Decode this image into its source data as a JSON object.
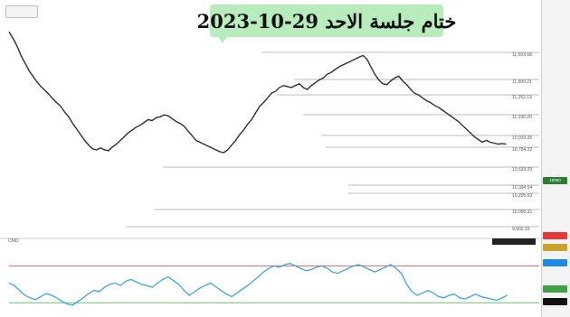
{
  "chart_data": [
    {
      "type": "line",
      "title": "ختام جلسة الاحد 29-10-2023",
      "series": [
        {
          "x": [
            0,
            3,
            6,
            9,
            12,
            15,
            18,
            21,
            24,
            27,
            30,
            33,
            36,
            39,
            42,
            45,
            48,
            51,
            54,
            57,
            60,
            63,
            66,
            69,
            72,
            75,
            78,
            81,
            84,
            87,
            90,
            93,
            96,
            99,
            102,
            105,
            108,
            111,
            114,
            117,
            120,
            123,
            126,
            129,
            132,
            135,
            138,
            141,
            144,
            147,
            150,
            153,
            156,
            159,
            162,
            165,
            168,
            171,
            174,
            177,
            180,
            183,
            186,
            189,
            192,
            195,
            198,
            201,
            204,
            207,
            210,
            213,
            216,
            219,
            222,
            225,
            228,
            231,
            234,
            237,
            240,
            243,
            246,
            249,
            252,
            255,
            258,
            261,
            264,
            267,
            270,
            273,
            276,
            279,
            282,
            285,
            288,
            291,
            294,
            297,
            300,
            303,
            306,
            309,
            312,
            315,
            318,
            321,
            324,
            327,
            330,
            333,
            336,
            339,
            342,
            345,
            348,
            351,
            354,
            357,
            360,
            363,
            366,
            369,
            372,
            375
          ],
          "values": [
            12050,
            11980,
            11900,
            11800,
            11720,
            11640,
            11580,
            11520,
            11470,
            11430,
            11390,
            11340,
            11300,
            11260,
            11200,
            11150,
            11080,
            11020,
            10960,
            10900,
            10850,
            10810,
            10800,
            10820,
            10800,
            10790,
            10830,
            10860,
            10900,
            10940,
            10980,
            11010,
            11040,
            11060,
            11090,
            11120,
            11110,
            11140,
            11150,
            11170,
            11160,
            11130,
            11100,
            11080,
            11050,
            11000,
            10950,
            10900,
            10880,
            10860,
            10840,
            10820,
            10800,
            10780,
            10770,
            10800,
            10850,
            10900,
            10960,
            11010,
            11070,
            11120,
            11190,
            11260,
            11300,
            11350,
            11400,
            11420,
            11460,
            11480,
            11470,
            11460,
            11480,
            11500,
            11460,
            11440,
            11480,
            11510,
            11540,
            11560,
            11600,
            11620,
            11650,
            11680,
            11700,
            11720,
            11740,
            11760,
            11780,
            11800,
            11760,
            11680,
            11600,
            11540,
            11500,
            11490,
            11530,
            11560,
            11580,
            11530,
            11490,
            11440,
            11400,
            11380,
            11350,
            11320,
            11300,
            11270,
            11250,
            11220,
            11190,
            11160,
            11130,
            11100,
            11060,
            11020,
            10980,
            10940,
            10910,
            10880,
            10900,
            10880,
            10870,
            10860,
            10865,
            10860
          ]
        }
      ],
      "levels": [
        "11,603.68",
        "11,500.21",
        "11,352.13",
        "11,190.20",
        "10,933.26",
        "10,784.32",
        "10,633.20",
        "10,394.54",
        "10,295.63",
        "10,090.31",
        "9,902.33"
      ],
      "ylim": [
        9880,
        12100
      ]
    },
    {
      "type": "line",
      "title": "",
      "series": [
        {
          "x": [
            0,
            4,
            8,
            12,
            16,
            20,
            24,
            28,
            32,
            36,
            40,
            44,
            48,
            52,
            56,
            60,
            64,
            68,
            72,
            76,
            80,
            84,
            88,
            92,
            96,
            100,
            104,
            108,
            112,
            116,
            120,
            124,
            128,
            132,
            136,
            140,
            144,
            148,
            152,
            156,
            160,
            164,
            168,
            172,
            176,
            180,
            184,
            188,
            192,
            196,
            200,
            204,
            208,
            212,
            216,
            220,
            224,
            228,
            232,
            236,
            240,
            244,
            248,
            252,
            256,
            260,
            264,
            268,
            272,
            276,
            280,
            284,
            288,
            292,
            296,
            300,
            304,
            308,
            312,
            316,
            320,
            324,
            328,
            332,
            336,
            340,
            344,
            348,
            352,
            356,
            360,
            364,
            368,
            372,
            376
          ],
          "values": [
            42,
            38,
            30,
            22,
            18,
            15,
            20,
            25,
            22,
            18,
            12,
            8,
            6,
            12,
            18,
            25,
            30,
            28,
            35,
            40,
            42,
            38,
            45,
            48,
            44,
            40,
            38,
            35,
            42,
            48,
            52,
            46,
            40,
            30,
            22,
            28,
            34,
            38,
            42,
            36,
            30,
            24,
            20,
            26,
            32,
            38,
            45,
            52,
            60,
            66,
            70,
            68,
            72,
            74,
            70,
            66,
            62,
            64,
            68,
            70,
            66,
            60,
            58,
            62,
            66,
            70,
            72,
            68,
            64,
            60,
            64,
            68,
            72,
            66,
            58,
            40,
            28,
            22,
            26,
            30,
            26,
            20,
            18,
            22,
            24,
            18,
            16,
            20,
            24,
            20,
            18,
            16,
            14,
            18,
            22
          ]
        }
      ],
      "hlines": [
        70,
        10
      ],
      "ylim": [
        0,
        100
      ]
    }
  ],
  "overlay": {
    "top_button": "",
    "osc_label": "CMO"
  },
  "axis": {
    "tags": [
      {
        "label": "10950",
        "color": "#2e7d32"
      },
      {
        "label": "",
        "color": "#e53935"
      },
      {
        "label": "",
        "color": "#c9a227"
      },
      {
        "label": "",
        "color": "#1e88e5"
      },
      {
        "label": "",
        "color": "#43a047"
      },
      {
        "label": "",
        "color": "#111111"
      }
    ]
  },
  "colors": {
    "price_line": "#2a2a2a",
    "price_accent": "#b23030",
    "osc_line": "#3aa6e8",
    "osc_red": "#d46a6a",
    "osc_green": "#6cc06c",
    "level_line": "#bdbdbd",
    "title_bg": "#b9ecbd"
  }
}
